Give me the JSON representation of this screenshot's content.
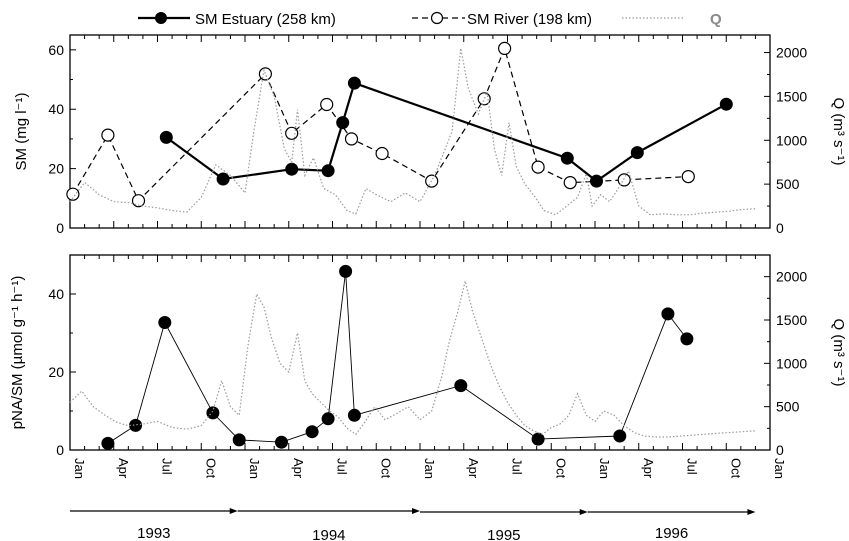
{
  "chart_data": {
    "type": "line",
    "legend": {
      "placement": "top",
      "items": [
        "SM Estuary (258 km)",
        "SM River (198 km)",
        "Q"
      ]
    },
    "x_tick_labels": [
      "Jan",
      "Apr",
      "Jul",
      "Oct",
      "Jan",
      "Apr",
      "Jul",
      "Oct",
      "Jan",
      "Apr",
      "Jul",
      "Oct",
      "Jan",
      "Apr",
      "Jul",
      "Oct",
      "Jan"
    ],
    "years": [
      "1993",
      "1994",
      "1995",
      "1996"
    ],
    "colors": {
      "estuary": "#000000",
      "river": "#000000",
      "q": "#9a9a9a"
    },
    "panels": [
      {
        "ylabel": "SM (mg l⁻¹)",
        "y2label": "Q (m³ s⁻¹)",
        "ylim": [
          0,
          65
        ],
        "yticks": [
          "0",
          "20",
          "40",
          "60"
        ],
        "y2ticks": [
          "0",
          "500",
          "1000",
          "1500",
          "2000"
        ],
        "series": [
          {
            "name": "SM Estuary (258 km)",
            "style": "filled-solid",
            "points": [
              [
                6.6,
                30.5
              ],
              [
                10.5,
                16.5
              ],
              [
                15.2,
                19.8
              ],
              [
                17.7,
                19.3
              ],
              [
                18.7,
                35.5
              ],
              [
                19.5,
                48.8
              ],
              [
                34.1,
                23.5
              ],
              [
                36.1,
                15.8
              ],
              [
                38.9,
                25.4
              ],
              [
                45.0,
                41.7
              ]
            ]
          },
          {
            "name": "SM River (198 km)",
            "style": "open-dashed",
            "points": [
              [
                0.2,
                11.4
              ],
              [
                2.6,
                31.3
              ],
              [
                4.7,
                9.2
              ],
              [
                13.4,
                51.9
              ],
              [
                15.2,
                31.9
              ],
              [
                17.6,
                41.6
              ],
              [
                19.3,
                30.0
              ],
              [
                21.4,
                25.1
              ],
              [
                24.8,
                15.8
              ],
              [
                28.4,
                43.5
              ],
              [
                29.8,
                60.5
              ],
              [
                32.1,
                20.5
              ],
              [
                34.3,
                15.3
              ],
              [
                38.0,
                16.2
              ],
              [
                42.4,
                17.3
              ]
            ]
          },
          {
            "name": "Q",
            "style": "dotted",
            "points": [
              [
                0,
                300
              ],
              [
                1,
                520
              ],
              [
                2,
                380
              ],
              [
                3,
                300
              ],
              [
                4,
                290
              ],
              [
                5,
                250
              ],
              [
                6,
                230
              ],
              [
                7,
                200
              ],
              [
                8,
                180
              ],
              [
                9,
                350
              ],
              [
                10,
                720
              ],
              [
                11,
                600
              ],
              [
                12,
                400
              ],
              [
                12.6,
                1100
              ],
              [
                13.3,
                1800
              ],
              [
                14,
                1500
              ],
              [
                14.7,
                900
              ],
              [
                15.2,
                750
              ],
              [
                15.6,
                1350
              ],
              [
                16.1,
                600
              ],
              [
                16.7,
                800
              ],
              [
                17.4,
                450
              ],
              [
                18.2,
                380
              ],
              [
                19,
                200
              ],
              [
                19.6,
                160
              ],
              [
                20.3,
                450
              ],
              [
                21,
                380
              ],
              [
                22,
                300
              ],
              [
                23,
                400
              ],
              [
                24,
                300
              ],
              [
                25,
                600
              ],
              [
                26.2,
                1100
              ],
              [
                26.8,
                2050
              ],
              [
                27.3,
                1600
              ],
              [
                28,
                1300
              ],
              [
                28.6,
                1550
              ],
              [
                29.1,
                900
              ],
              [
                29.6,
                600
              ],
              [
                30.1,
                1200
              ],
              [
                30.6,
                700
              ],
              [
                31.2,
                500
              ],
              [
                31.9,
                350
              ],
              [
                32.5,
                200
              ],
              [
                33.3,
                150
              ],
              [
                34,
                240
              ],
              [
                34.8,
                350
              ],
              [
                35.4,
                620
              ],
              [
                35.8,
                250
              ],
              [
                36.4,
                380
              ],
              [
                37,
                300
              ],
              [
                37.6,
                450
              ],
              [
                38.3,
                650
              ],
              [
                39,
                250
              ],
              [
                39.8,
                150
              ],
              [
                40.7,
                160
              ],
              [
                41.6,
                150
              ],
              [
                42.5,
                150
              ],
              [
                43.4,
                170
              ],
              [
                44.3,
                180
              ],
              [
                45.2,
                190
              ],
              [
                46,
                210
              ],
              [
                47,
                220
              ]
            ]
          }
        ]
      },
      {
        "ylabel": "pNA/SM (µmol g⁻¹ h⁻¹)",
        "y2label": "Q (m³ s⁻¹)",
        "ylim": [
          0,
          50
        ],
        "yticks": [
          "0",
          "20",
          "40"
        ],
        "y2ticks": [
          "0",
          "500",
          "1000",
          "1500",
          "2000"
        ],
        "series": [
          {
            "name": "pNA/SM",
            "style": "filled-thin",
            "points": [
              [
                2.6,
                1.7
              ],
              [
                4.5,
                6.3
              ],
              [
                6.5,
                32.7
              ],
              [
                9.8,
                9.5
              ],
              [
                11.6,
                2.6
              ],
              [
                14.5,
                2.0
              ],
              [
                16.6,
                4.7
              ],
              [
                17.7,
                8.0
              ],
              [
                18.9,
                45.8
              ],
              [
                19.5,
                8.9
              ],
              [
                26.8,
                16.5
              ],
              [
                32.1,
                2.8
              ],
              [
                37.7,
                3.6
              ],
              [
                41.0,
                34.9
              ],
              [
                42.3,
                28.5
              ]
            ]
          },
          {
            "name": "Q",
            "style": "dotted",
            "points": [
              [
                0,
                550
              ],
              [
                0.8,
                680
              ],
              [
                1.6,
                500
              ],
              [
                2.4,
                400
              ],
              [
                3.2,
                320
              ],
              [
                4,
                280
              ],
              [
                5,
                300
              ],
              [
                6,
                330
              ],
              [
                7,
                260
              ],
              [
                8,
                240
              ],
              [
                9,
                280
              ],
              [
                9.8,
                450
              ],
              [
                10.4,
                800
              ],
              [
                11,
                500
              ],
              [
                11.6,
                400
              ],
              [
                12.2,
                1200
              ],
              [
                12.8,
                1800
              ],
              [
                13.3,
                1650
              ],
              [
                13.8,
                1300
              ],
              [
                14.4,
                1000
              ],
              [
                15,
                900
              ],
              [
                15.6,
                1350
              ],
              [
                16.1,
                800
              ],
              [
                16.6,
                650
              ],
              [
                17.2,
                550
              ],
              [
                17.8,
                450
              ],
              [
                18.4,
                380
              ],
              [
                19,
                250
              ],
              [
                19.6,
                180
              ],
              [
                20.2,
                320
              ],
              [
                20.9,
                500
              ],
              [
                21.6,
                350
              ],
              [
                22.4,
                420
              ],
              [
                23.2,
                500
              ],
              [
                24,
                350
              ],
              [
                24.8,
                450
              ],
              [
                25.5,
                850
              ],
              [
                26,
                1250
              ],
              [
                26.6,
                1600
              ],
              [
                27.1,
                1950
              ],
              [
                27.6,
                1600
              ],
              [
                28.2,
                1300
              ],
              [
                28.8,
                1000
              ],
              [
                29.4,
                750
              ],
              [
                30,
                550
              ],
              [
                30.6,
                400
              ],
              [
                31.2,
                280
              ],
              [
                31.8,
                220
              ],
              [
                32.4,
                180
              ],
              [
                33,
                260
              ],
              [
                33.6,
                300
              ],
              [
                34.2,
                400
              ],
              [
                34.8,
                650
              ],
              [
                35.4,
                400
              ],
              [
                36,
                330
              ],
              [
                36.6,
                450
              ],
              [
                37.3,
                400
              ],
              [
                38,
                280
              ],
              [
                38.7,
                200
              ],
              [
                39.4,
                160
              ],
              [
                40.2,
                150
              ],
              [
                41,
                150
              ],
              [
                41.8,
                160
              ],
              [
                42.6,
                170
              ],
              [
                43.4,
                180
              ],
              [
                44.2,
                190
              ],
              [
                45,
                200
              ],
              [
                46,
                210
              ],
              [
                47,
                220
              ]
            ]
          }
        ]
      }
    ]
  }
}
